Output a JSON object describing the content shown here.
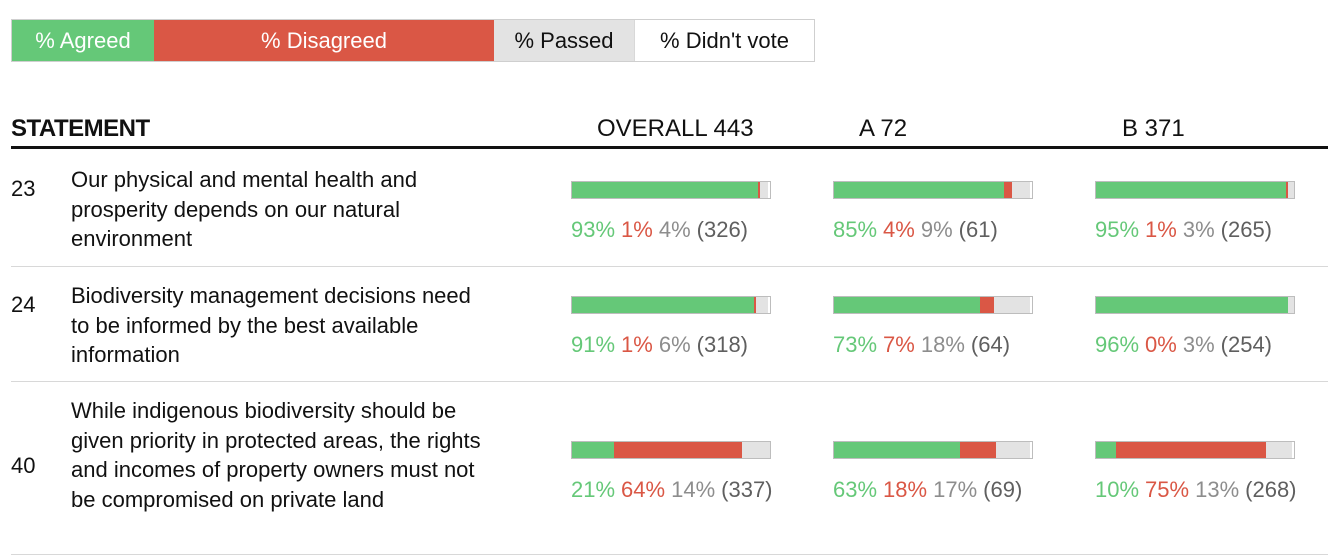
{
  "colors": {
    "agree": "#65c878",
    "disagree": "#da5745",
    "pass": "#e3e3e3",
    "pass_text": "#8d8d8d",
    "count_text": "#5f5f5f"
  },
  "legend": {
    "agreed": "% Agreed",
    "disagreed": "% Disagreed",
    "passed": "% Passed",
    "didnt_vote": "% Didn't vote"
  },
  "header": {
    "statement": "STATEMENT",
    "overall": "OVERALL 443",
    "group_a": "A 72",
    "group_b": "B 371"
  },
  "statements": [
    {
      "id": "23",
      "text": "Our physical and mental health and prosperity depends on our natural environment",
      "groups": [
        {
          "agree": 93,
          "disagree": 1,
          "pass": 4,
          "count": 326,
          "agree_label": "93%",
          "disagree_label": "1%",
          "pass_label": "4%",
          "count_label": "(326)"
        },
        {
          "agree": 85,
          "disagree": 4,
          "pass": 9,
          "count": 61,
          "agree_label": "85%",
          "disagree_label": "4%",
          "pass_label": "9%",
          "count_label": "(61)"
        },
        {
          "agree": 95,
          "disagree": 1,
          "pass": 3,
          "count": 265,
          "agree_label": "95%",
          "disagree_label": "1%",
          "pass_label": "3%",
          "count_label": "(265)"
        }
      ]
    },
    {
      "id": "24",
      "text": "Biodiversity management decisions need to be informed by the best available information",
      "groups": [
        {
          "agree": 91,
          "disagree": 1,
          "pass": 6,
          "count": 318,
          "agree_label": "91%",
          "disagree_label": "1%",
          "pass_label": "6%",
          "count_label": "(318)"
        },
        {
          "agree": 73,
          "disagree": 7,
          "pass": 18,
          "count": 64,
          "agree_label": "73%",
          "disagree_label": "7%",
          "pass_label": "18%",
          "count_label": "(64)"
        },
        {
          "agree": 96,
          "disagree": 0,
          "pass": 3,
          "count": 254,
          "agree_label": "96%",
          "disagree_label": "0%",
          "pass_label": "3%",
          "count_label": "(254)"
        }
      ]
    },
    {
      "id": "40",
      "text": "While indigenous biodiversity should be given priority in protected areas, the rights and incomes of property owners must not be compromised on private land",
      "groups": [
        {
          "agree": 21,
          "disagree": 64,
          "pass": 14,
          "count": 337,
          "agree_label": "21%",
          "disagree_label": "64%",
          "pass_label": "14%",
          "count_label": "(337)"
        },
        {
          "agree": 63,
          "disagree": 18,
          "pass": 17,
          "count": 69,
          "agree_label": "63%",
          "disagree_label": "18%",
          "pass_label": "17%",
          "count_label": "(69)"
        },
        {
          "agree": 10,
          "disagree": 75,
          "pass": 13,
          "count": 268,
          "agree_label": "10%",
          "disagree_label": "75%",
          "pass_label": "13%",
          "count_label": "(268)"
        }
      ]
    }
  ]
}
